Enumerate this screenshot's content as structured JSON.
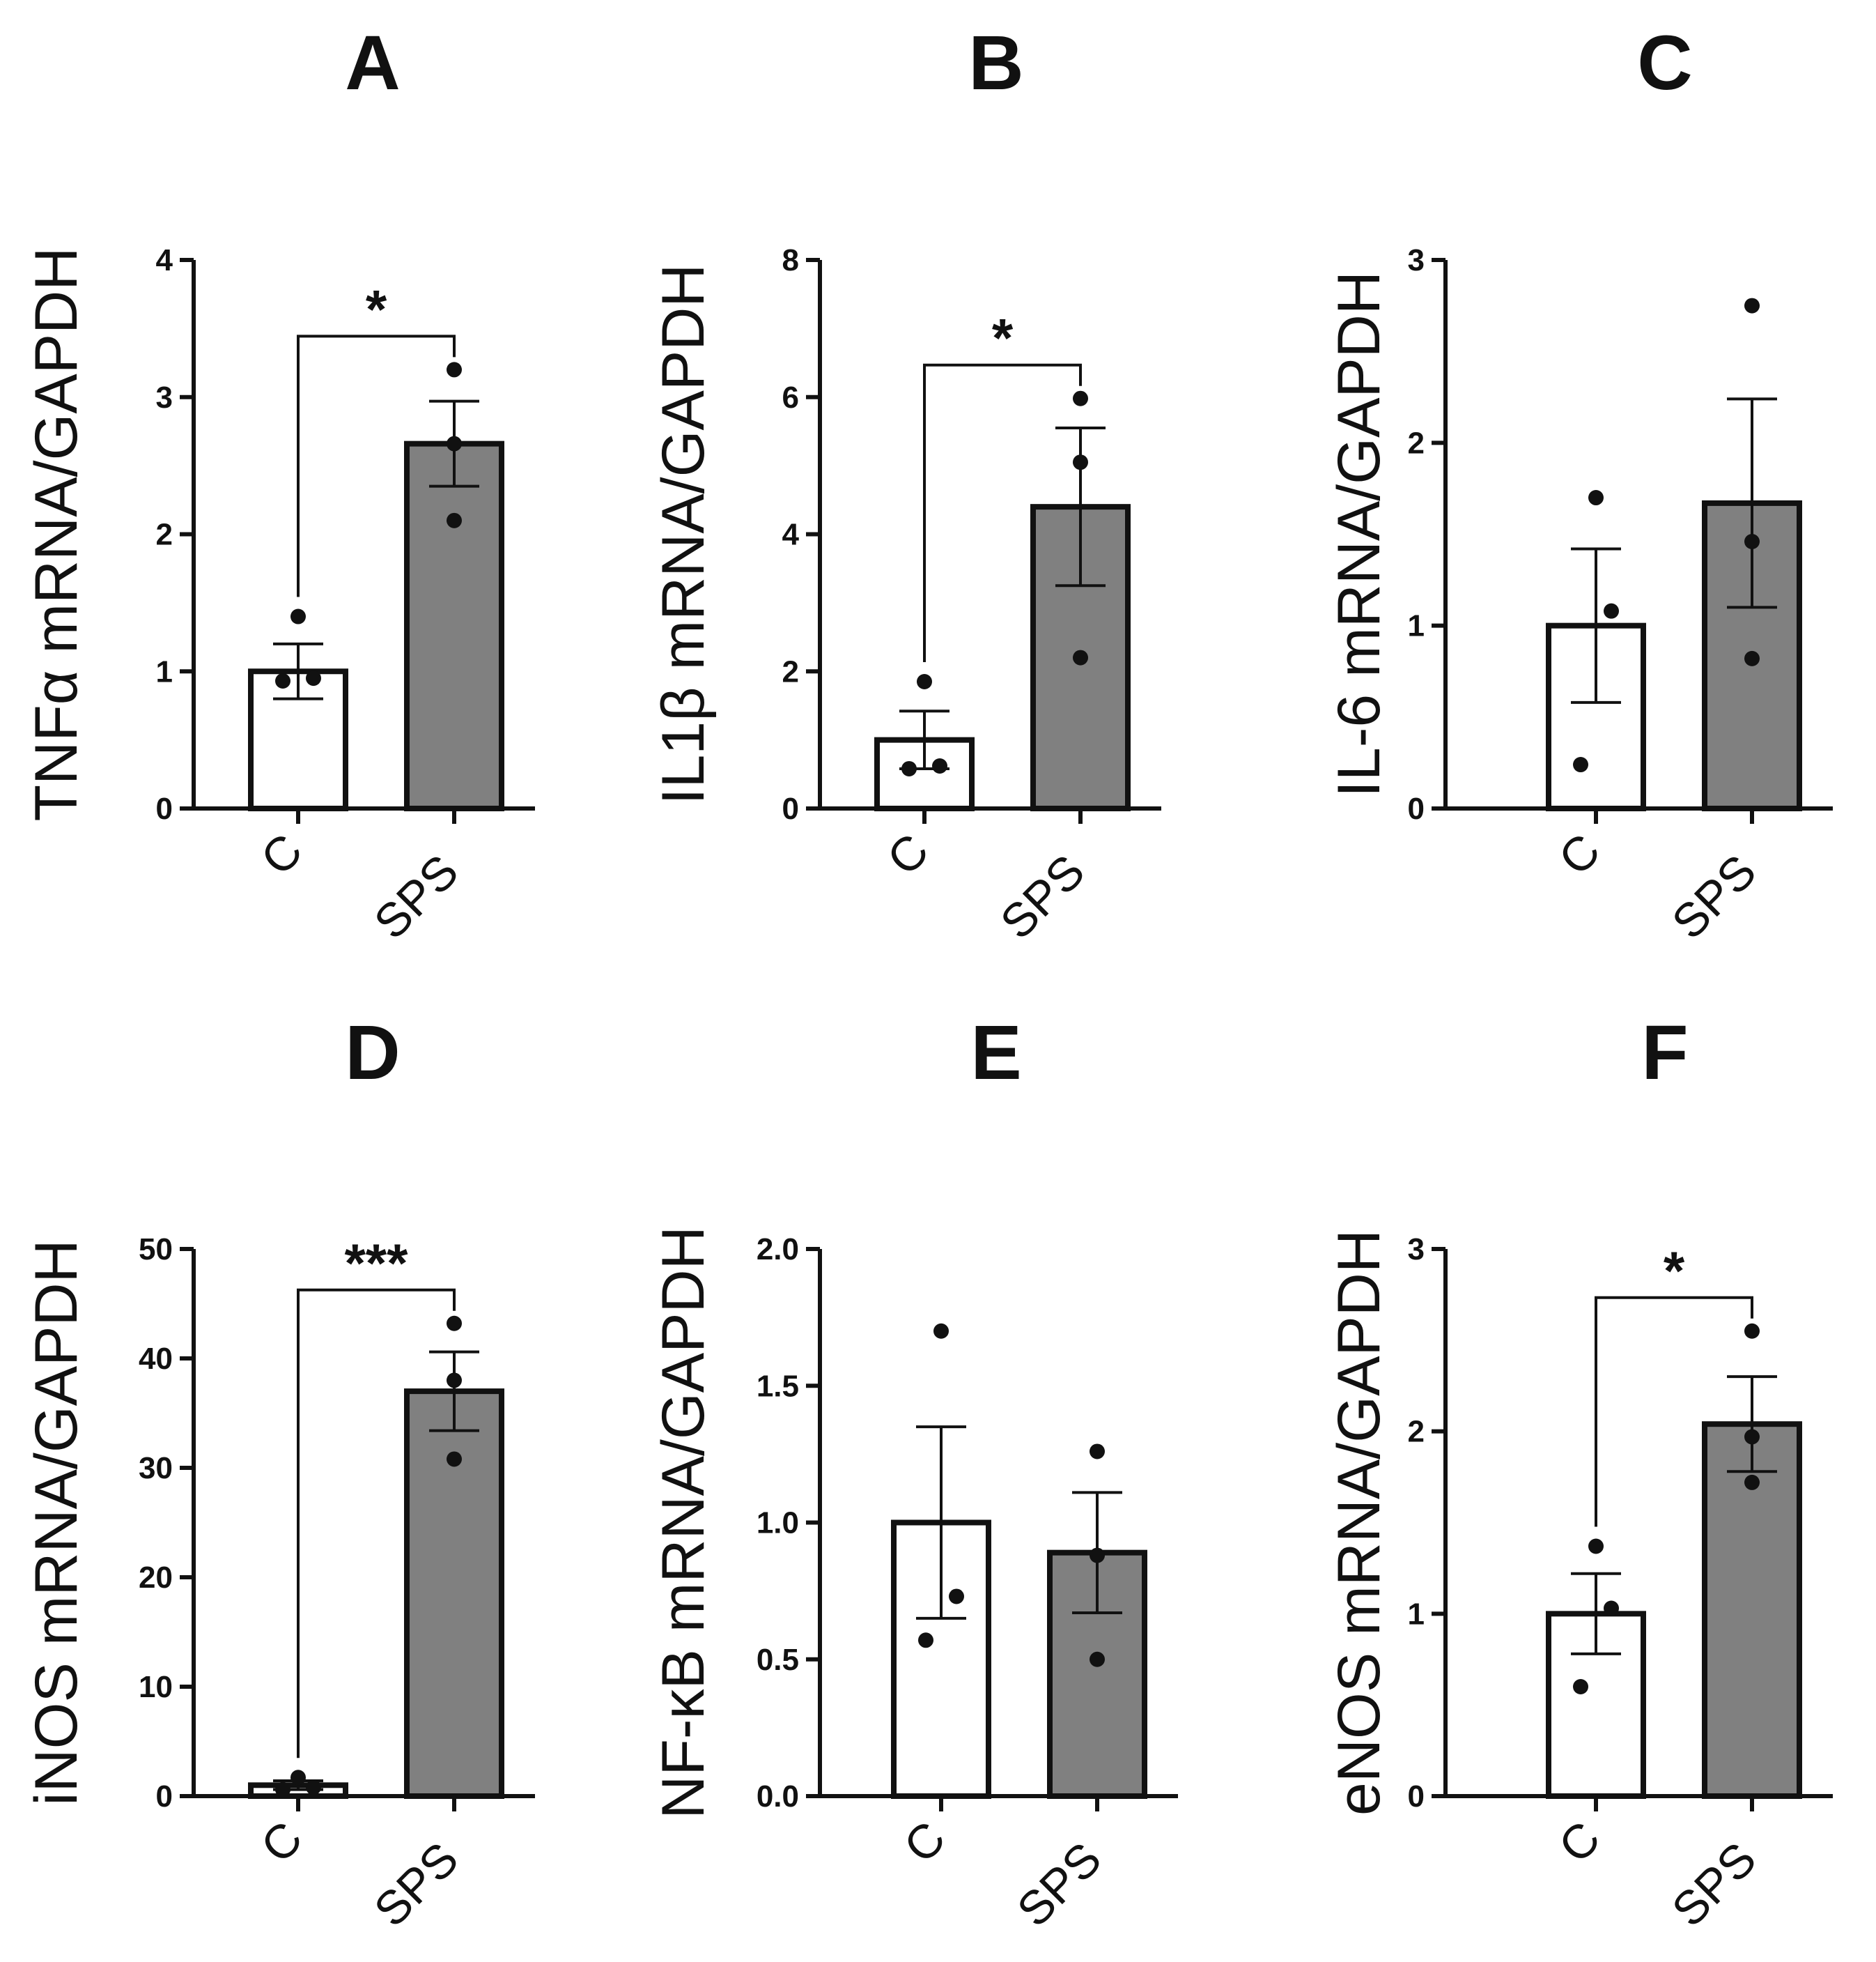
{
  "chart_data": [
    {
      "type": "bar",
      "panel": "A",
      "ylabel": "TNFα mRNA/GAPDH",
      "categories": [
        "C",
        "SPS"
      ],
      "values": [
        1.0,
        2.66
      ],
      "errors": [
        0.2,
        0.31
      ],
      "points": [
        [
          0.93,
          0.95,
          1.4
        ],
        [
          2.1,
          2.66,
          3.2
        ]
      ],
      "colors": [
        "#ffffff",
        "#808080"
      ],
      "ylim": [
        0,
        4
      ],
      "yticks": [
        0,
        1,
        2,
        3,
        4
      ],
      "ytick_labels": [
        "0",
        "1",
        "2",
        "3",
        "4"
      ],
      "significance": "*"
    },
    {
      "type": "bar",
      "panel": "B",
      "ylabel": "IL1β mRNA/GAPDH",
      "categories": [
        "C",
        "SPS"
      ],
      "values": [
        1.0,
        4.4
      ],
      "errors": [
        0.42,
        1.15
      ],
      "points": [
        [
          0.58,
          0.62,
          1.85
        ],
        [
          2.2,
          5.05,
          5.98
        ]
      ],
      "colors": [
        "#ffffff",
        "#808080"
      ],
      "ylim": [
        0,
        8
      ],
      "yticks": [
        0,
        2,
        4,
        6,
        8
      ],
      "ytick_labels": [
        "0",
        "2",
        "4",
        "6",
        "8"
      ],
      "significance": "*"
    },
    {
      "type": "bar",
      "panel": "C",
      "ylabel": "IL-6 mRNA/GAPDH",
      "categories": [
        "C",
        "SPS"
      ],
      "values": [
        1.0,
        1.67
      ],
      "errors": [
        0.42,
        0.57
      ],
      "points": [
        [
          0.24,
          1.08,
          1.7
        ],
        [
          0.82,
          1.46,
          2.75
        ]
      ],
      "colors": [
        "#ffffff",
        "#808080"
      ],
      "ylim": [
        0,
        3
      ],
      "yticks": [
        0,
        1,
        2,
        3
      ],
      "ytick_labels": [
        "0",
        "1",
        "2",
        "3"
      ],
      "significance": ""
    },
    {
      "type": "bar",
      "panel": "D",
      "ylabel": "iNOS mRNA/GAPDH",
      "categories": [
        "C",
        "SPS"
      ],
      "values": [
        1.0,
        37.0
      ],
      "errors": [
        0.4,
        3.6
      ],
      "points": [
        [
          0.6,
          0.8,
          1.7
        ],
        [
          30.8,
          38.0,
          43.2
        ]
      ],
      "colors": [
        "#ffffff",
        "#808080"
      ],
      "ylim": [
        0,
        50
      ],
      "yticks": [
        0,
        10,
        20,
        30,
        40,
        50
      ],
      "ytick_labels": [
        "0",
        "10",
        "20",
        "30",
        "40",
        "50"
      ],
      "significance": "***"
    },
    {
      "type": "bar",
      "panel": "E",
      "ylabel": "NF-κB mRNA/GAPDH",
      "categories": [
        "C",
        "SPS"
      ],
      "values": [
        1.0,
        0.89
      ],
      "errors": [
        0.35,
        0.22
      ],
      "points": [
        [
          0.57,
          0.73,
          1.7
        ],
        [
          0.5,
          0.88,
          1.26
        ]
      ],
      "colors": [
        "#ffffff",
        "#808080"
      ],
      "ylim": [
        0,
        2.0
      ],
      "yticks": [
        0,
        0.5,
        1.0,
        1.5,
        2.0
      ],
      "ytick_labels": [
        "0.0",
        "0.5",
        "1.0",
        "1.5",
        "2.0"
      ],
      "significance": ""
    },
    {
      "type": "bar",
      "panel": "F",
      "ylabel": "eNOS mRNA/GAPDH",
      "categories": [
        "C",
        "SPS"
      ],
      "values": [
        1.0,
        2.04
      ],
      "errors": [
        0.22,
        0.26
      ],
      "points": [
        [
          0.6,
          1.03,
          1.37
        ],
        [
          1.72,
          1.97,
          2.55
        ]
      ],
      "colors": [
        "#ffffff",
        "#808080"
      ],
      "ylim": [
        0,
        3
      ],
      "yticks": [
        0,
        1,
        2,
        3
      ],
      "ytick_labels": [
        "0",
        "1",
        "2",
        "3"
      ],
      "significance": "*"
    }
  ]
}
